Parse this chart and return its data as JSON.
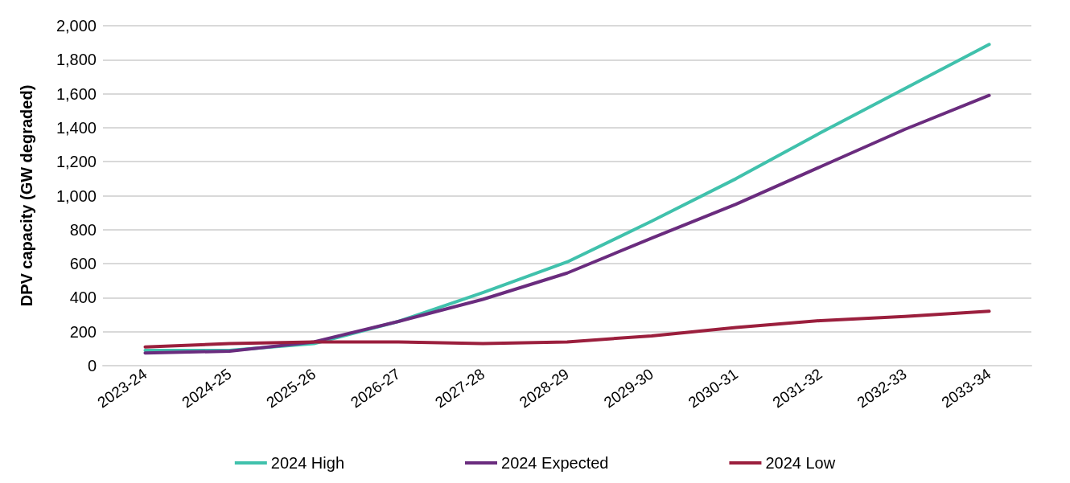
{
  "chart_data": {
    "type": "line",
    "ylabel": "DPV capacity (GW degraded)",
    "categories": [
      "2023-24",
      "2024-25",
      "2025-26",
      "2026-27",
      "2027-28",
      "2028-29",
      "2029-30",
      "2030-31",
      "2031-32",
      "2032-33",
      "2033-34"
    ],
    "series": [
      {
        "name": "2024 High",
        "color": "#40c1ac",
        "values": [
          90,
          90,
          130,
          260,
          430,
          610,
          850,
          1100,
          1370,
          1630,
          1890
        ]
      },
      {
        "name": "2024 Expected",
        "color": "#6a2c7e",
        "values": [
          75,
          85,
          140,
          260,
          390,
          545,
          750,
          950,
          1170,
          1390,
          1590
        ]
      },
      {
        "name": "2024 Low",
        "color": "#9b1f3d",
        "values": [
          110,
          130,
          140,
          140,
          130,
          140,
          175,
          225,
          265,
          290,
          320
        ]
      }
    ],
    "ylim": [
      0,
      2000
    ],
    "yticks": [
      0,
      200,
      400,
      600,
      800,
      {
        "value": 1000,
        "label": "1,000"
      },
      {
        "value": 1200,
        "label": "1,200"
      },
      {
        "value": 1400,
        "label": "1,400"
      },
      {
        "value": 1600,
        "label": "1,600"
      },
      {
        "value": 1800,
        "label": "1,800"
      },
      {
        "value": 2000,
        "label": "2,000"
      }
    ],
    "grid": "y",
    "legend": "bottom",
    "marker": "none",
    "line_style": "solid"
  }
}
